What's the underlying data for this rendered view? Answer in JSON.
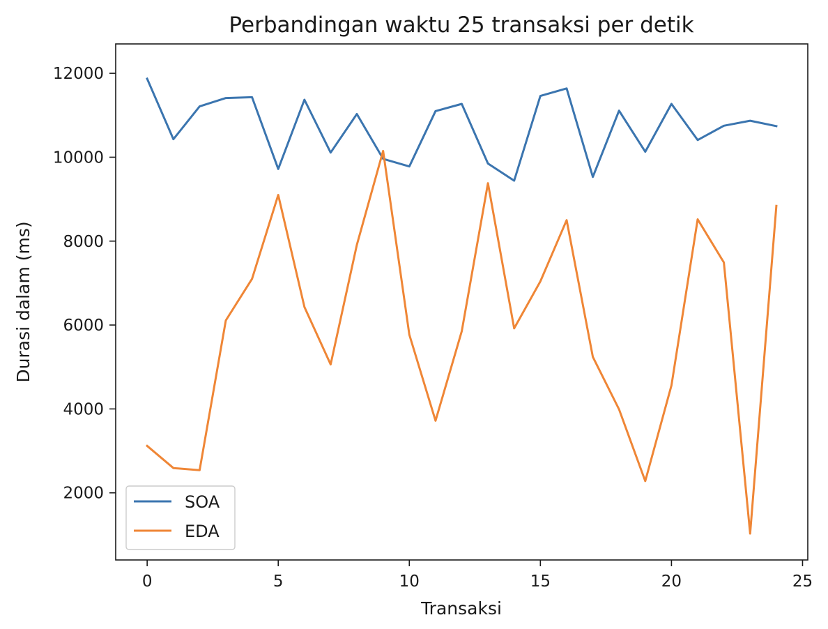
{
  "chart_data": {
    "type": "line",
    "title": "Perbandingan waktu 25 transaksi per detik",
    "xlabel": "Transaksi",
    "ylabel": "Durasi dalam (ms)",
    "xlim": [
      -1.2,
      25.2
    ],
    "ylim": [
      400,
      12700
    ],
    "x_ticks": [
      0,
      5,
      10,
      15,
      20,
      25
    ],
    "y_ticks": [
      2000,
      4000,
      6000,
      8000,
      10000,
      12000
    ],
    "grid": false,
    "legend_position": "lower-left",
    "x": [
      0,
      1,
      2,
      3,
      4,
      5,
      6,
      7,
      8,
      9,
      10,
      11,
      12,
      13,
      14,
      15,
      16,
      17,
      18,
      19,
      20,
      21,
      22,
      23,
      24
    ],
    "series": [
      {
        "name": "SOA",
        "color": "#3b75af",
        "values": [
          11870,
          10430,
          11210,
          11410,
          11430,
          9720,
          11370,
          10110,
          11030,
          9960,
          9780,
          11100,
          11270,
          9850,
          9440,
          11460,
          11640,
          9530,
          11110,
          10130,
          11270,
          10410,
          10750,
          10870,
          10740
        ]
      },
      {
        "name": "EDA",
        "color": "#ef8636",
        "values": [
          3120,
          2590,
          2540,
          6110,
          7100,
          9100,
          6430,
          5060,
          7910,
          10150,
          5770,
          3720,
          5850,
          9380,
          5920,
          7040,
          8500,
          5240,
          3990,
          2280,
          4560,
          8520,
          7490,
          1030,
          8840
        ]
      }
    ]
  }
}
